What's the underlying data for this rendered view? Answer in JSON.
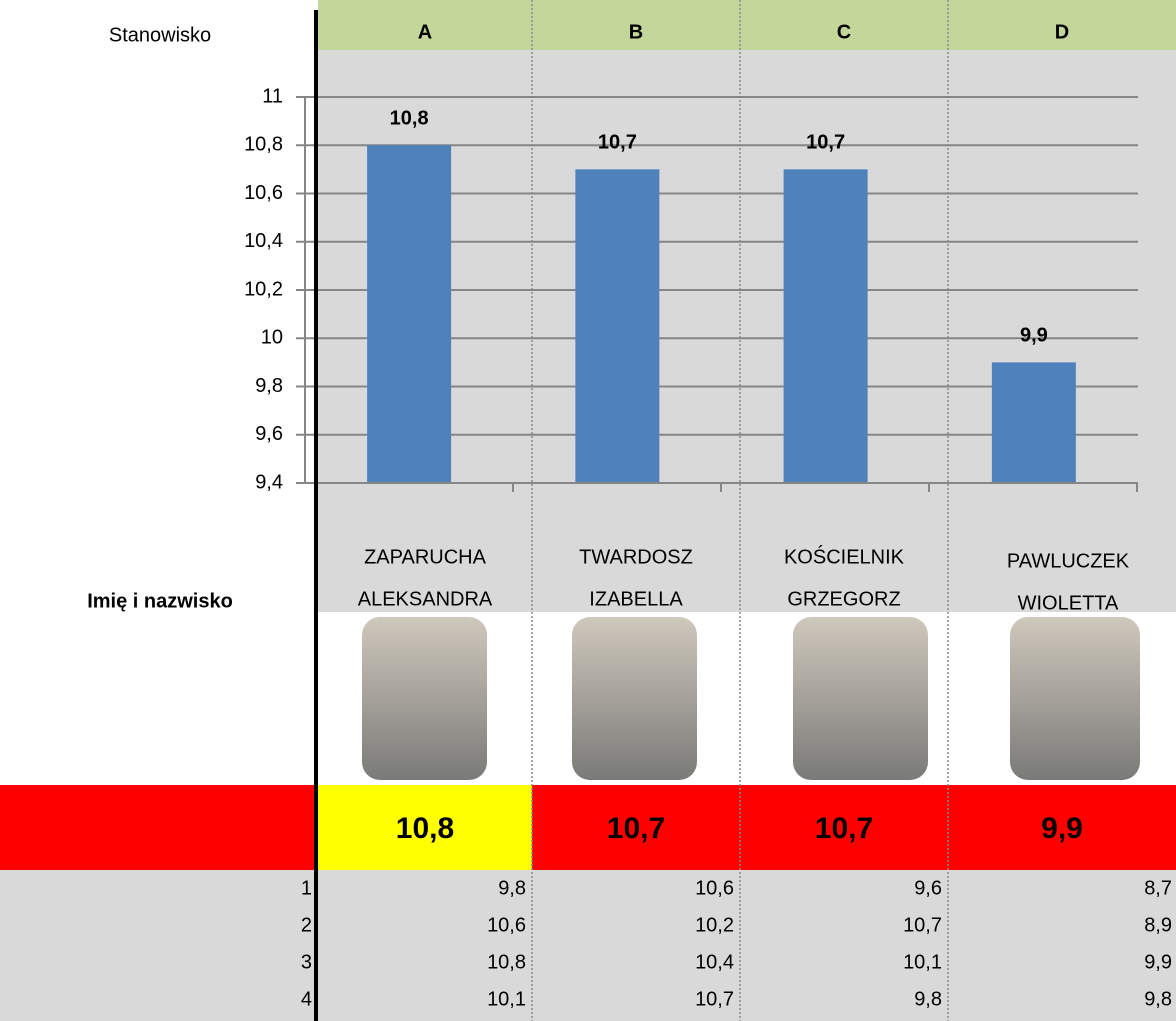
{
  "header": {
    "label": "Stanowisko",
    "columns": [
      "A",
      "B",
      "C",
      "D"
    ]
  },
  "chart_data": {
    "type": "bar",
    "categories": [
      null,
      null,
      null,
      null
    ],
    "values": [
      10.8,
      10.7,
      10.7,
      9.9
    ],
    "value_labels": [
      "10,8",
      "10,7",
      "10,7",
      "9,9"
    ],
    "color": "#4f81bd",
    "ylim": [
      9.4,
      11
    ],
    "yticks": [
      {
        "value": 9.4,
        "label": "9,4"
      },
      {
        "value": 9.6,
        "label": "9,6"
      },
      {
        "value": 9.8,
        "label": "9,8"
      },
      10,
      {
        "value": 10.2,
        "label": "10,2"
      },
      {
        "value": 10.4,
        "label": "10,4"
      },
      {
        "value": 10.6,
        "label": "10,6"
      },
      {
        "value": 10.8,
        "label": "10,8"
      },
      11
    ],
    "grid": true
  },
  "names_label": "Imię i nazwisko",
  "names": [
    [
      "ZAPARUCHA",
      "ALEKSANDRA"
    ],
    [
      "TWARDOSZ",
      "IZABELLA"
    ],
    [
      "KOŚCIELNIK",
      "GRZEGORZ"
    ],
    [
      "PAWLUCZEK",
      "WIOLETTA"
    ]
  ],
  "scores": [
    "10,8",
    "10,7",
    "10,7",
    "9,9"
  ],
  "table": {
    "rows": [
      [
        "1",
        "9,8",
        "10,6",
        "9,6",
        "8,7"
      ],
      [
        "2",
        "10,6",
        "10,2",
        "10,7",
        "8,9"
      ],
      [
        "3",
        "10,8",
        "10,4",
        "10,1",
        "9,9"
      ],
      [
        "4",
        "10,1",
        "10,7",
        "9,8",
        "9,8"
      ]
    ]
  }
}
